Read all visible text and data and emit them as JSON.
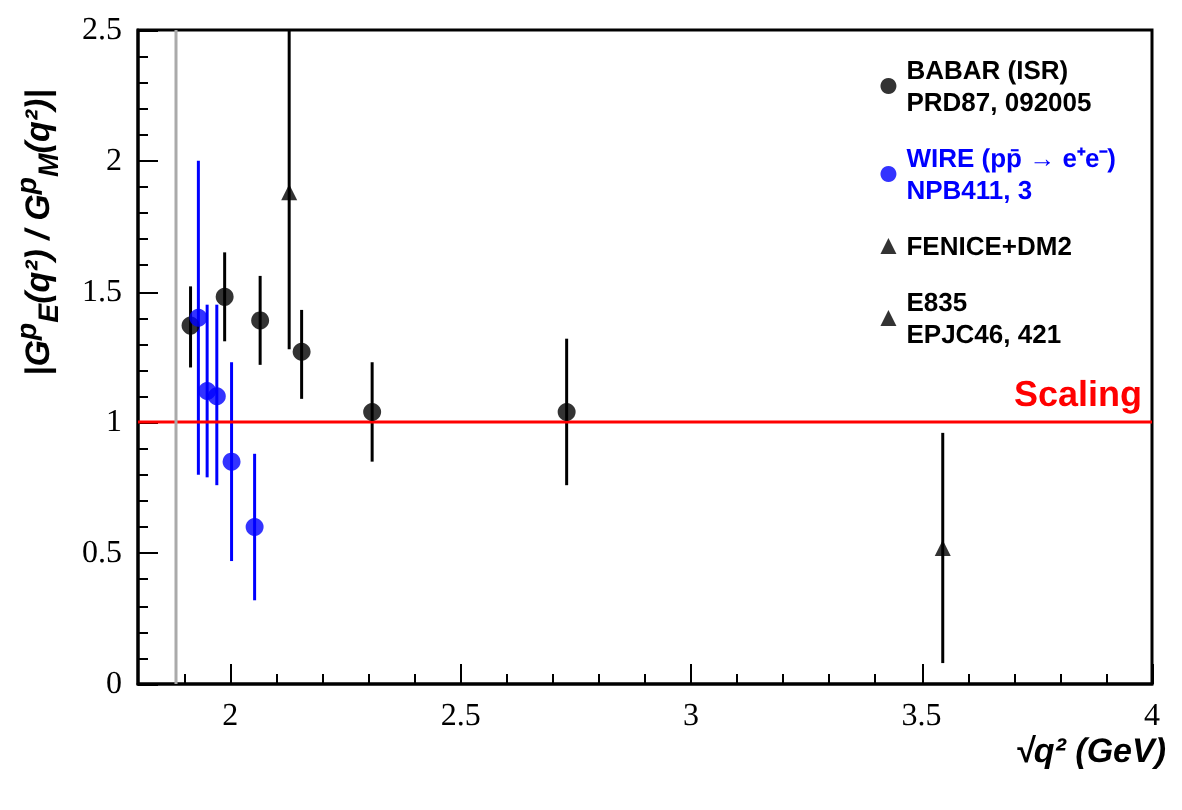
{
  "chart_data": {
    "type": "scatter",
    "xlabel": "√q² (GeV)",
    "ylabel": "|G$^{p}$$_{E}$(q²) / G$^{p}$$_{M}$(q²)|",
    "xlim": [
      1.8,
      4
    ],
    "xticks": [
      2,
      2.5,
      3,
      3.5,
      4
    ],
    "ylim": [
      0,
      2.5
    ],
    "yticks": [
      0,
      0.5,
      1,
      1.5,
      2,
      2.5
    ],
    "grid": false,
    "legend": "top right",
    "series": [
      {
        "name": "BABAR (ISR)\nPRD87, 092005",
        "color": "#000000",
        "marker": "circle",
        "x": [
          1.914,
          1.988,
          2.065,
          2.155,
          2.308,
          2.73
        ],
        "values": [
          1.37,
          1.48,
          1.39,
          1.27,
          1.04,
          1.04
        ],
        "errors": [
          [
            1.21,
            1.52
          ],
          [
            1.31,
            1.65
          ],
          [
            1.22,
            1.56
          ],
          [
            1.09,
            1.43
          ],
          [
            0.85,
            1.23
          ],
          [
            0.76,
            1.32
          ]
        ]
      },
      {
        "name": "WIRE (pp̄ → e⁺e⁻)\nNPB411, 3",
        "color": "#0000ff",
        "marker": "circle",
        "x": [
          1.931,
          1.95,
          1.971,
          2.003,
          2.053
        ],
        "values": [
          1.4,
          1.12,
          1.1,
          0.85,
          0.6
        ],
        "errors": [
          [
            0.8,
            2.0
          ],
          [
            0.79,
            1.45
          ],
          [
            0.76,
            1.45
          ],
          [
            0.47,
            1.23
          ],
          [
            0.32,
            0.88
          ]
        ]
      },
      {
        "name": "FENICE+DM2",
        "color": "#000000",
        "marker": "triangle",
        "x": [
          2.128
        ],
        "values": [
          1.88
        ],
        "errors": [
          [
            1.28,
            2.5
          ]
        ]
      },
      {
        "name": "E835\nEPJC46, 421",
        "color": "#000000",
        "marker": "triangle",
        "x": [
          3.546
        ],
        "values": [
          0.52
        ],
        "errors": [
          [
            0.08,
            0.96
          ]
        ]
      }
    ],
    "ref_lines": [
      {
        "axis": "y",
        "value": 1,
        "label": "Scaling",
        "color": "#ff0000"
      },
      {
        "axis": "x",
        "value": 1.877,
        "label": null,
        "color": "#aaaaaa"
      }
    ]
  }
}
